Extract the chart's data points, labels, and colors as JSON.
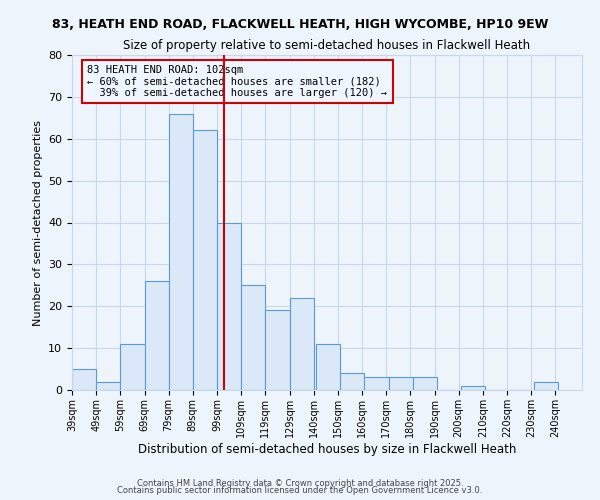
{
  "title1": "83, HEATH END ROAD, FLACKWELL HEATH, HIGH WYCOMBE, HP10 9EW",
  "title2": "Size of property relative to semi-detached houses in Flackwell Heath",
  "xlabel": "Distribution of semi-detached houses by size in Flackwell Heath",
  "ylabel": "Number of semi-detached properties",
  "bin_labels": [
    "39sqm",
    "49sqm",
    "59sqm",
    "69sqm",
    "79sqm",
    "89sqm",
    "99sqm",
    "109sqm",
    "119sqm",
    "129sqm",
    "140sqm",
    "150sqm",
    "160sqm",
    "170sqm",
    "180sqm",
    "190sqm",
    "200sqm",
    "210sqm",
    "220sqm",
    "230sqm",
    "240sqm"
  ],
  "bin_left_edges": [
    39,
    49,
    59,
    69,
    79,
    89,
    99,
    109,
    119,
    129,
    140,
    150,
    160,
    170,
    180,
    190,
    200,
    210,
    220,
    230
  ],
  "bin_width": 10,
  "counts": [
    5,
    2,
    11,
    26,
    66,
    62,
    40,
    25,
    19,
    22,
    11,
    4,
    3,
    3,
    3,
    0,
    1,
    0,
    0,
    2
  ],
  "bar_facecolor": "#dae8f7",
  "bar_edgecolor": "#5b9bd5",
  "property_value": 102,
  "vline_color": "#cc0000",
  "annotation_line1": "83 HEATH END ROAD: 102sqm",
  "annotation_line2": "← 60% of semi-detached houses are smaller (182)",
  "annotation_line3": "  39% of semi-detached houses are larger (120) →",
  "annotation_box_edgecolor": "#cc0000",
  "annotation_box_facecolor": "#f0f6ff",
  "grid_color": "#c8d8eb",
  "background_color": "#eef4fc",
  "ylim": [
    0,
    80
  ],
  "yticks": [
    0,
    10,
    20,
    30,
    40,
    50,
    60,
    70,
    80
  ],
  "xmin": 39,
  "xmax": 250,
  "footer1": "Contains HM Land Registry data © Crown copyright and database right 2025.",
  "footer2": "Contains public sector information licensed under the Open Government Licence v3.0."
}
